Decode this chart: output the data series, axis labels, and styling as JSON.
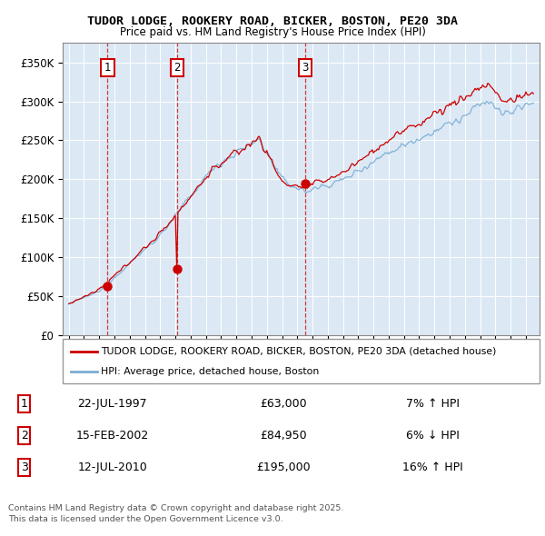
{
  "title": "TUDOR LODGE, ROOKERY ROAD, BICKER, BOSTON, PE20 3DA",
  "subtitle": "Price paid vs. HM Land Registry's House Price Index (HPI)",
  "legend_line1": "TUDOR LODGE, ROOKERY ROAD, BICKER, BOSTON, PE20 3DA (detached house)",
  "legend_line2": "HPI: Average price, detached house, Boston",
  "footer": "Contains HM Land Registry data © Crown copyright and database right 2025.\nThis data is licensed under the Open Government Licence v3.0.",
  "transactions": [
    {
      "num": 1,
      "date": "22-JUL-1997",
      "price": 63000,
      "pct": "7%",
      "dir": "↑",
      "year": 1997.55
    },
    {
      "num": 2,
      "date": "15-FEB-2002",
      "price": 84950,
      "pct": "6%",
      "dir": "↓",
      "year": 2002.12
    },
    {
      "num": 3,
      "date": "12-JUL-2010",
      "price": 195000,
      "pct": "16%",
      "dir": "↑",
      "year": 2010.53
    }
  ],
  "plot_background": "#dce9f5",
  "red_color": "#cc0000",
  "blue_color": "#7aadd4",
  "ylim": [
    0,
    375000
  ],
  "yticks": [
    0,
    50000,
    100000,
    150000,
    200000,
    250000,
    300000,
    350000
  ],
  "xlim_start": 1994.6,
  "xlim_end": 2025.9
}
